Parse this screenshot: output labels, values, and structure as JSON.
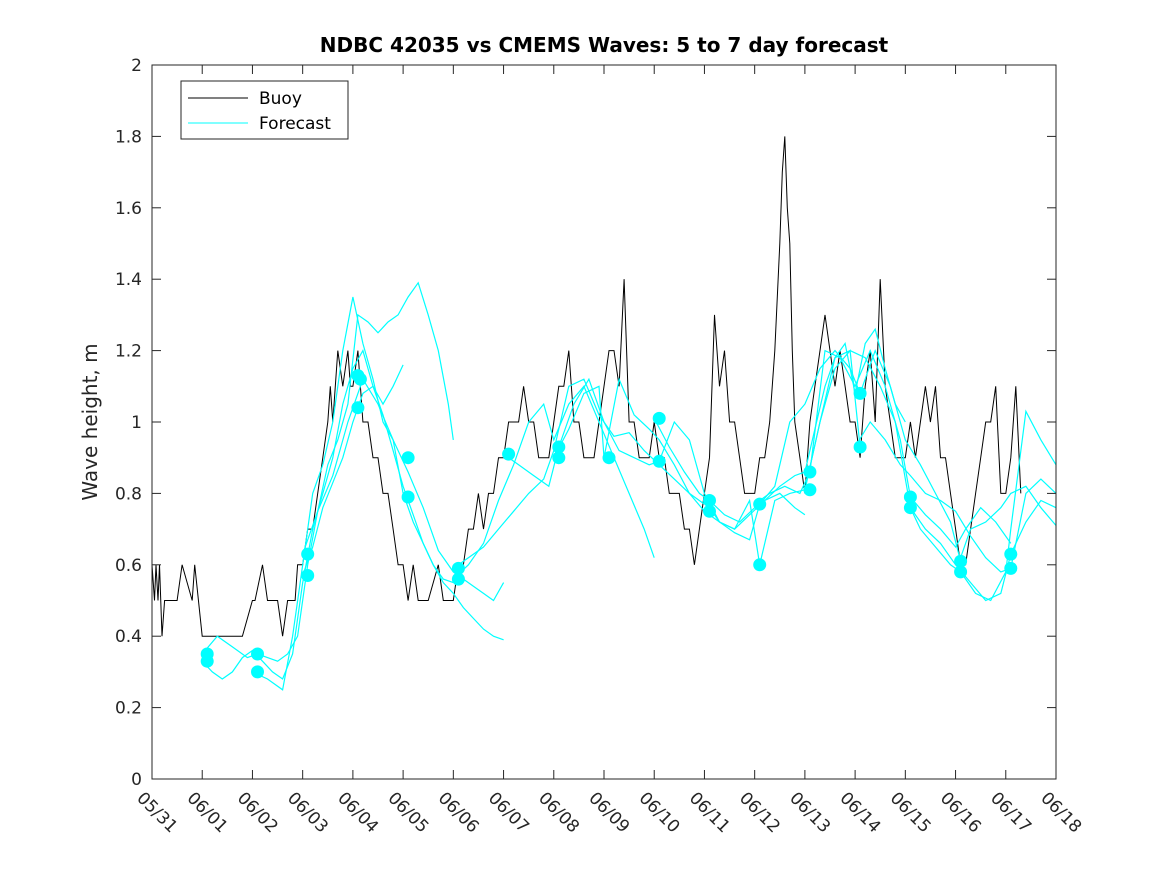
{
  "chart_data": {
    "type": "line",
    "title": "NDBC 42035 vs CMEMS Waves: 5 to 7 day forecast",
    "xlabel": "",
    "ylabel": "Wave height, m",
    "xlim": [
      "05/31",
      "06/18"
    ],
    "ylim": [
      0,
      2
    ],
    "x_tick_labels": [
      "05/31",
      "06/01",
      "06/02",
      "06/03",
      "06/04",
      "06/05",
      "06/06",
      "06/07",
      "06/08",
      "06/09",
      "06/10",
      "06/11",
      "06/12",
      "06/13",
      "06/14",
      "06/15",
      "06/16",
      "06/17",
      "06/18"
    ],
    "y_ticks": [
      0,
      0.2,
      0.4,
      0.6,
      0.8,
      1,
      1.2,
      1.4,
      1.6,
      1.8,
      2
    ],
    "y_tick_labels": [
      "0",
      "0.2",
      "0.4",
      "0.6",
      "0.8",
      "1",
      "1.2",
      "1.4",
      "1.6",
      "1.8",
      "2"
    ],
    "grid": false,
    "legend_position": "top-left",
    "colors": {
      "buoy": "#000000",
      "forecast": "#00ffff"
    },
    "buoy": {
      "name": "Buoy",
      "x": [
        0,
        0.05,
        0.08,
        0.12,
        0.15,
        0.2,
        0.25,
        0.3,
        0.5,
        0.6,
        0.8,
        0.85,
        1.0,
        1.1,
        1.3,
        1.5,
        1.8,
        2.0,
        2.05,
        2.2,
        2.3,
        2.5,
        2.6,
        2.7,
        2.85,
        2.9,
        3.0,
        3.1,
        3.2,
        3.3,
        3.4,
        3.5,
        3.55,
        3.6,
        3.7,
        3.8,
        3.9,
        3.95,
        4.0,
        4.1,
        4.15,
        4.2,
        4.3,
        4.4,
        4.5,
        4.6,
        4.7,
        4.8,
        4.9,
        5.0,
        5.1,
        5.2,
        5.3,
        5.5,
        5.7,
        5.8,
        5.9,
        6.0,
        6.1,
        6.2,
        6.3,
        6.4,
        6.5,
        6.6,
        6.7,
        6.8,
        6.9,
        7.0,
        7.1,
        7.2,
        7.3,
        7.4,
        7.5,
        7.6,
        7.7,
        7.8,
        7.9,
        8.0,
        8.1,
        8.2,
        8.3,
        8.4,
        8.5,
        8.6,
        8.7,
        8.8,
        8.9,
        9.0,
        9.1,
        9.2,
        9.3,
        9.4,
        9.5,
        9.6,
        9.7,
        9.8,
        9.9,
        10.0,
        10.1,
        10.2,
        10.3,
        10.4,
        10.5,
        10.6,
        10.7,
        10.8,
        10.9,
        11.0,
        11.1,
        11.2,
        11.3,
        11.4,
        11.5,
        11.6,
        11.7,
        11.8,
        11.9,
        12.0,
        12.1,
        12.2,
        12.3,
        12.4,
        12.5,
        12.55,
        12.6,
        12.65,
        12.7,
        12.75,
        12.8,
        12.9,
        13.0,
        13.1,
        13.2,
        13.3,
        13.4,
        13.5,
        13.6,
        13.7,
        13.8,
        13.9,
        14.0,
        14.1,
        14.2,
        14.3,
        14.4,
        14.5,
        14.6,
        14.7,
        14.8,
        14.9,
        15.0,
        15.1,
        15.2,
        15.3,
        15.4,
        15.5,
        15.6,
        15.7,
        15.8,
        15.9,
        16.0,
        16.1,
        16.2,
        16.3,
        16.4,
        16.5,
        16.6,
        16.7,
        16.8,
        16.9,
        17.0,
        17.1,
        17.2,
        17.3
      ],
      "y": [
        0.6,
        0.5,
        0.6,
        0.5,
        0.6,
        0.4,
        0.5,
        0.5,
        0.5,
        0.6,
        0.5,
        0.6,
        0.4,
        0.4,
        0.4,
        0.4,
        0.4,
        0.5,
        0.5,
        0.6,
        0.5,
        0.5,
        0.4,
        0.5,
        0.5,
        0.6,
        0.6,
        0.7,
        0.7,
        0.8,
        0.9,
        1.0,
        1.1,
        1.0,
        1.2,
        1.1,
        1.2,
        1.1,
        1.1,
        1.2,
        1.1,
        1.0,
        1.0,
        0.9,
        0.9,
        0.8,
        0.8,
        0.7,
        0.6,
        0.6,
        0.5,
        0.6,
        0.5,
        0.5,
        0.6,
        0.5,
        0.5,
        0.5,
        0.6,
        0.6,
        0.7,
        0.7,
        0.8,
        0.7,
        0.8,
        0.8,
        0.9,
        0.9,
        1.0,
        1.0,
        1.0,
        1.1,
        1.0,
        1.0,
        0.9,
        0.9,
        0.9,
        1.0,
        1.1,
        1.1,
        1.2,
        1.0,
        1.0,
        0.9,
        0.9,
        0.9,
        1.0,
        1.1,
        1.2,
        1.2,
        1.1,
        1.4,
        1.0,
        1.0,
        0.9,
        0.9,
        0.9,
        1.0,
        0.9,
        0.9,
        0.8,
        0.8,
        0.8,
        0.7,
        0.7,
        0.6,
        0.7,
        0.8,
        0.9,
        1.3,
        1.1,
        1.2,
        1.0,
        1.0,
        0.9,
        0.8,
        0.8,
        0.8,
        0.9,
        0.9,
        1.0,
        1.2,
        1.5,
        1.7,
        1.8,
        1.6,
        1.5,
        1.2,
        1.0,
        0.9,
        0.8,
        1.0,
        1.1,
        1.2,
        1.3,
        1.2,
        1.1,
        1.2,
        1.1,
        1.0,
        1.0,
        0.9,
        1.1,
        1.2,
        1.0,
        1.4,
        1.1,
        1.0,
        0.9,
        0.9,
        0.9,
        1.0,
        0.9,
        1.0,
        1.1,
        1.0,
        1.1,
        0.9,
        0.9,
        0.8,
        0.7,
        0.6,
        0.6,
        0.7,
        0.8,
        0.9,
        1.0,
        1.0,
        1.1,
        0.8,
        0.8,
        0.9,
        1.1,
        0.8
      ]
    },
    "forecast": {
      "name": "Forecast",
      "lines": [
        {
          "x": [
            1.0,
            1.2,
            1.4,
            1.6,
            1.8,
            2.0,
            2.2,
            2.4,
            2.6,
            2.8,
            3.0,
            3.2,
            3.4,
            3.6,
            3.8,
            4.0,
            4.2,
            4.4,
            4.6,
            4.8,
            5.0
          ],
          "y": [
            0.33,
            0.3,
            0.28,
            0.3,
            0.34,
            0.36,
            0.33,
            0.3,
            0.28,
            0.35,
            0.55,
            0.7,
            0.8,
            0.9,
            1.05,
            1.15,
            1.2,
            1.1,
            1.05,
            1.1,
            1.16
          ]
        },
        {
          "x": [
            1.0,
            1.3,
            1.6,
            1.9,
            2.1,
            2.3,
            2.5,
            2.7,
            2.9,
            3.1,
            3.3,
            3.5,
            3.7,
            3.9,
            4.1,
            4.3,
            4.5,
            4.7,
            4.9,
            5.1,
            5.3,
            5.5,
            5.7,
            5.9,
            6.0
          ],
          "y": [
            0.35,
            0.4,
            0.37,
            0.34,
            0.35,
            0.34,
            0.33,
            0.35,
            0.4,
            0.6,
            0.75,
            0.88,
            0.95,
            1.05,
            1.3,
            1.28,
            1.25,
            1.28,
            1.3,
            1.35,
            1.39,
            1.3,
            1.2,
            1.05,
            0.95
          ]
        },
        {
          "x": [
            2.0,
            2.3,
            2.6,
            2.8,
            3.0,
            3.2,
            3.4,
            3.6,
            3.8,
            4.0,
            4.2,
            4.4,
            4.6,
            4.8,
            5.0,
            5.2,
            5.4,
            5.6,
            5.8,
            6.0
          ],
          "y": [
            0.3,
            0.28,
            0.25,
            0.4,
            0.6,
            0.8,
            0.88,
            1.0,
            1.2,
            1.35,
            1.22,
            1.12,
            1.0,
            0.95,
            0.8,
            0.72,
            0.66,
            0.6,
            0.56,
            0.55
          ]
        },
        {
          "x": [
            3.0,
            3.2,
            3.4,
            3.6,
            3.8,
            4.0,
            4.2,
            4.4,
            4.6,
            4.8,
            5.0,
            5.2,
            5.4,
            5.6,
            5.8,
            6.0,
            6.2,
            6.4,
            6.6,
            6.8,
            7.0
          ],
          "y": [
            0.57,
            0.65,
            0.76,
            0.83,
            0.9,
            1.0,
            1.08,
            1.1,
            1.02,
            0.92,
            0.82,
            0.74,
            0.66,
            0.6,
            0.55,
            0.52,
            0.48,
            0.45,
            0.42,
            0.4,
            0.39
          ]
        },
        {
          "x": [
            3.0,
            3.3,
            3.6,
            3.9,
            4.2,
            4.5,
            4.8,
            5.1,
            5.4,
            5.7,
            6.0,
            6.2,
            6.4,
            6.6,
            6.8,
            7.0
          ],
          "y": [
            0.63,
            0.75,
            0.85,
            1.0,
            1.12,
            1.05,
            0.95,
            0.86,
            0.76,
            0.64,
            0.58,
            0.56,
            0.54,
            0.52,
            0.5,
            0.55
          ]
        },
        {
          "x": [
            6.0,
            6.3,
            6.6,
            6.9,
            7.2,
            7.5,
            7.8,
            8.0,
            8.3,
            8.6,
            8.9,
            9.2,
            9.5,
            9.8,
            10.0
          ],
          "y": [
            0.56,
            0.6,
            0.66,
            0.78,
            0.88,
            1.0,
            1.05,
            0.95,
            1.05,
            1.1,
            1.0,
            0.9,
            0.8,
            0.7,
            0.62
          ]
        },
        {
          "x": [
            6.0,
            6.3,
            6.6,
            6.9,
            7.2,
            7.5,
            7.8,
            8.0,
            8.3,
            8.6,
            8.9,
            9.2,
            9.5,
            9.8,
            10.1,
            10.4,
            10.7,
            11.0
          ],
          "y": [
            0.59,
            0.62,
            0.65,
            0.7,
            0.75,
            0.8,
            0.84,
            0.92,
            1.1,
            1.12,
            1.02,
            0.96,
            0.97,
            0.92,
            0.88,
            0.84,
            0.8,
            0.77
          ]
        },
        {
          "x": [
            7.0,
            7.3,
            7.6,
            7.9,
            8.1,
            8.4,
            8.7,
            9.0,
            9.3,
            9.6,
            9.9,
            10.1,
            10.4,
            10.7,
            11.0,
            11.3,
            11.6,
            11.9,
            12.2,
            12.5,
            12.8,
            13.0
          ],
          "y": [
            0.91,
            0.88,
            0.85,
            0.82,
            0.93,
            1.05,
            1.12,
            1.0,
            0.92,
            0.9,
            0.88,
            0.89,
            1.0,
            0.95,
            0.8,
            0.72,
            0.7,
            0.74,
            0.78,
            0.8,
            0.76,
            0.74
          ]
        },
        {
          "x": [
            8.0,
            8.3,
            8.6,
            8.9,
            9.0,
            9.3,
            9.6,
            9.9,
            10.1,
            10.4,
            10.7,
            11.0,
            11.3,
            11.6,
            11.9,
            12.1,
            12.4,
            12.7,
            13.0,
            13.3,
            13.6,
            13.9,
            14.1
          ],
          "y": [
            0.9,
            0.98,
            1.08,
            1.1,
            0.9,
            1.12,
            1.02,
            0.98,
            0.95,
            0.88,
            0.8,
            0.75,
            0.72,
            0.7,
            0.78,
            0.6,
            0.78,
            0.8,
            0.81,
            1.0,
            1.15,
            1.2,
            0.93
          ]
        },
        {
          "x": [
            10.0,
            10.3,
            10.6,
            10.9,
            11.1,
            11.4,
            11.7,
            12.0,
            12.2,
            12.5,
            12.8,
            13.0,
            13.2,
            13.4,
            13.6,
            13.8,
            14.0,
            14.2,
            14.4,
            14.6,
            14.8,
            15.0
          ],
          "y": [
            1.01,
            0.93,
            0.86,
            0.8,
            0.78,
            0.74,
            0.72,
            0.76,
            0.78,
            0.82,
            0.85,
            0.86,
            0.98,
            1.1,
            1.18,
            1.22,
            1.08,
            1.22,
            1.26,
            1.15,
            1.05,
            1.0
          ]
        },
        {
          "x": [
            11.0,
            11.3,
            11.6,
            11.9,
            12.1,
            12.4,
            12.7,
            13.0,
            13.3,
            13.6,
            13.9,
            14.1,
            14.4,
            14.7,
            15.0,
            15.3,
            15.6,
            15.9,
            16.1
          ],
          "y": [
            0.78,
            0.72,
            0.69,
            0.67,
            0.77,
            0.82,
            1.0,
            1.05,
            1.15,
            1.2,
            1.15,
            1.08,
            1.2,
            1.1,
            0.95,
            0.88,
            0.8,
            0.72,
            0.61
          ]
        },
        {
          "x": [
            12.0,
            12.3,
            12.6,
            12.9,
            13.1,
            13.4,
            13.7,
            14.0,
            14.3,
            14.6,
            14.9,
            15.1,
            15.4,
            15.7,
            16.0,
            16.2,
            16.5,
            16.8,
            17.1
          ],
          "y": [
            0.77,
            0.8,
            0.82,
            0.8,
            0.86,
            1.2,
            1.18,
            1.1,
            1.2,
            1.1,
            0.95,
            0.79,
            0.74,
            0.7,
            0.65,
            0.7,
            0.76,
            0.72,
            0.66
          ]
        },
        {
          "x": [
            13.0,
            13.3,
            13.6,
            13.9,
            14.2,
            14.5,
            14.8,
            15.1,
            15.4,
            15.7,
            16.0,
            16.3,
            16.6,
            16.9,
            17.1,
            17.4,
            17.7,
            18.0
          ],
          "y": [
            0.81,
            1.0,
            1.18,
            1.2,
            1.18,
            1.1,
            1.0,
            0.76,
            0.7,
            0.66,
            0.6,
            0.55,
            0.5,
            0.52,
            0.63,
            0.72,
            0.78,
            0.76
          ]
        },
        {
          "x": [
            14.0,
            14.3,
            14.6,
            14.9,
            15.1,
            15.4,
            15.7,
            16.0,
            16.3,
            16.6,
            16.9,
            17.1,
            17.4,
            17.7,
            18.0
          ],
          "y": [
            0.93,
            1.0,
            0.95,
            0.88,
            0.85,
            0.8,
            0.78,
            0.75,
            0.68,
            0.62,
            0.58,
            0.59,
            0.8,
            0.84,
            0.8
          ]
        },
        {
          "x": [
            15.0,
            15.3,
            15.6,
            15.9,
            16.1,
            16.4,
            16.7,
            17.0,
            17.1,
            17.4,
            17.7,
            18.0
          ],
          "y": [
            0.79,
            0.7,
            0.65,
            0.6,
            0.58,
            0.52,
            0.5,
            0.58,
            0.7,
            1.03,
            0.95,
            0.88
          ]
        },
        {
          "x": [
            16.0,
            16.3,
            16.6,
            16.9,
            17.1,
            17.4,
            17.7,
            18.0
          ],
          "y": [
            0.58,
            0.7,
            0.72,
            0.76,
            0.8,
            0.82,
            0.76,
            0.71
          ]
        }
      ],
      "markers": {
        "x": [
          1.1,
          1.1,
          2.1,
          2.1,
          3.1,
          3.1,
          4.1,
          4.1,
          4.15,
          5.1,
          5.1,
          6.1,
          6.1,
          7.1,
          8.1,
          8.1,
          9.1,
          10.1,
          10.1,
          11.1,
          11.1,
          12.1,
          12.1,
          13.1,
          13.1,
          14.1,
          14.1,
          15.1,
          15.1,
          16.1,
          16.1,
          17.1,
          17.1
        ],
        "y": [
          0.35,
          0.33,
          0.35,
          0.3,
          0.63,
          0.57,
          1.13,
          1.04,
          1.12,
          0.9,
          0.79,
          0.59,
          0.56,
          0.91,
          0.93,
          0.9,
          0.9,
          1.01,
          0.89,
          0.78,
          0.75,
          0.77,
          0.6,
          0.86,
          0.81,
          1.08,
          0.93,
          0.79,
          0.76,
          0.61,
          0.58,
          0.63,
          0.59
        ]
      }
    },
    "legend": [
      {
        "label": "Buoy",
        "color": "#000000"
      },
      {
        "label": "Forecast",
        "color": "#00ffff"
      }
    ]
  }
}
